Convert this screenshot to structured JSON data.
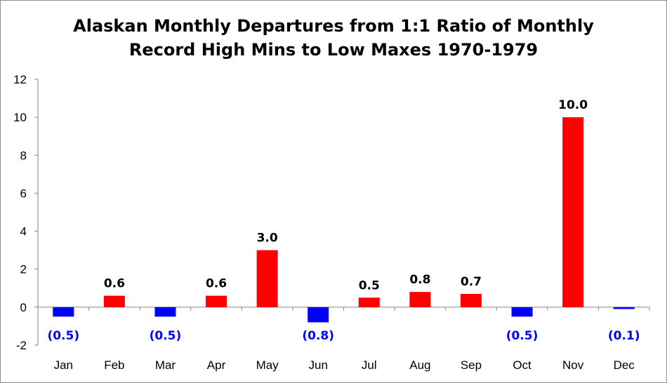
{
  "chart_data": {
    "type": "bar",
    "title_lines": [
      "Alaskan Monthly Departures from 1:1 Ratio of Monthly",
      "Record High Mins to Low Maxes 1970-1979"
    ],
    "categories": [
      "Jan",
      "Feb",
      "Mar",
      "Apr",
      "May",
      "Jun",
      "Jul",
      "Aug",
      "Sep",
      "Oct",
      "Nov",
      "Dec"
    ],
    "values": [
      -0.5,
      0.6,
      -0.5,
      0.6,
      3.0,
      -0.8,
      0.5,
      0.8,
      0.7,
      -0.5,
      10.0,
      -0.1
    ],
    "data_labels": [
      "(0.5)",
      "0.6",
      "(0.5)",
      "0.6",
      "3.0",
      "(0.8)",
      "0.5",
      "0.8",
      "0.7",
      "(0.5)",
      "10.0",
      "(0.1)"
    ],
    "ylim": [
      -2,
      12
    ],
    "yticks": [
      -2,
      0,
      2,
      4,
      6,
      8,
      10,
      12
    ],
    "ytick_labels": [
      "-2",
      "0",
      "2",
      "4",
      "6",
      "8",
      "10",
      "12"
    ],
    "positive_color": "#ff0000",
    "negative_color": "#0000ff",
    "negative_label_color": "#0000ff",
    "positive_label_color": "#000000",
    "grid": false,
    "legend": "none"
  }
}
